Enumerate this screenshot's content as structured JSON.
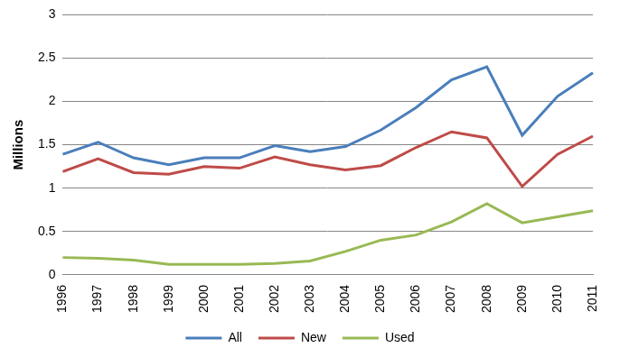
{
  "chart_data": {
    "type": "line",
    "y_label": "Millions",
    "categories": [
      "1996",
      "1997",
      "1998",
      "1999",
      "2000",
      "2001",
      "2002",
      "2003",
      "2004",
      "2005",
      "2006",
      "2007",
      "2008",
      "2009",
      "2010",
      "2011"
    ],
    "series": [
      {
        "name": "All",
        "color": "#4a7ebb",
        "values": [
          1.39,
          1.53,
          1.35,
          1.27,
          1.35,
          1.35,
          1.49,
          1.42,
          1.48,
          1.67,
          1.93,
          2.25,
          2.4,
          1.61,
          2.06,
          2.33
        ]
      },
      {
        "name": "New",
        "color": "#be4b48",
        "values": [
          1.19,
          1.34,
          1.18,
          1.16,
          1.25,
          1.23,
          1.36,
          1.27,
          1.21,
          1.26,
          1.47,
          1.65,
          1.58,
          1.02,
          1.39,
          1.6
        ]
      },
      {
        "name": "Used",
        "color": "#98b954",
        "values": [
          0.2,
          0.19,
          0.17,
          0.12,
          0.12,
          0.12,
          0.13,
          0.16,
          0.27,
          0.4,
          0.46,
          0.61,
          0.82,
          0.6,
          0.67,
          0.74
        ]
      }
    ],
    "ylim": [
      0,
      3
    ],
    "yticks": [
      0,
      0.5,
      1,
      1.5,
      2,
      2.5,
      3
    ],
    "grid": true,
    "legend": "bottom"
  }
}
